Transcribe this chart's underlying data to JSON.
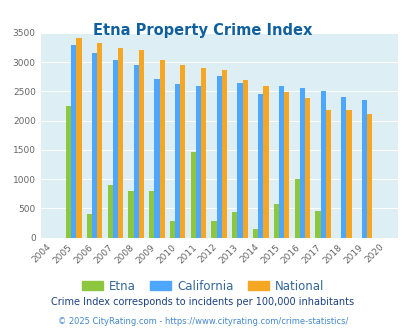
{
  "title": "Etna Property Crime Index",
  "years": [
    "2004",
    "2005",
    "2006",
    "2007",
    "2008",
    "2009",
    "2010",
    "2011",
    "2012",
    "2013",
    "2014",
    "2015",
    "2016",
    "2017",
    "2018",
    "2019",
    "2020"
  ],
  "etna": [
    0,
    2250,
    400,
    900,
    800,
    800,
    290,
    1470,
    290,
    430,
    150,
    570,
    1000,
    450,
    0,
    0,
    0
  ],
  "california": [
    0,
    3300,
    3150,
    3030,
    2950,
    2720,
    2620,
    2600,
    2760,
    2650,
    2450,
    2600,
    2560,
    2500,
    2400,
    2360,
    0
  ],
  "national": [
    0,
    3420,
    3330,
    3250,
    3210,
    3040,
    2950,
    2900,
    2860,
    2700,
    2600,
    2490,
    2380,
    2190,
    2190,
    2110,
    0
  ],
  "bar_width": 0.25,
  "ylim": [
    0,
    3500
  ],
  "yticks": [
    0,
    500,
    1000,
    1500,
    2000,
    2500,
    3000,
    3500
  ],
  "colors": {
    "etna": "#8dc63f",
    "california": "#4da6ff",
    "national": "#f5a623"
  },
  "bg_color": "#ddeef5",
  "title_color": "#1060a0",
  "legend_label_color": "#336699",
  "subtitle": "Crime Index corresponds to incidents per 100,000 inhabitants",
  "footer": "© 2025 CityRating.com - https://www.cityrating.com/crime-statistics/",
  "subtitle_color": "#1a4080",
  "footer_color": "#4488cc"
}
